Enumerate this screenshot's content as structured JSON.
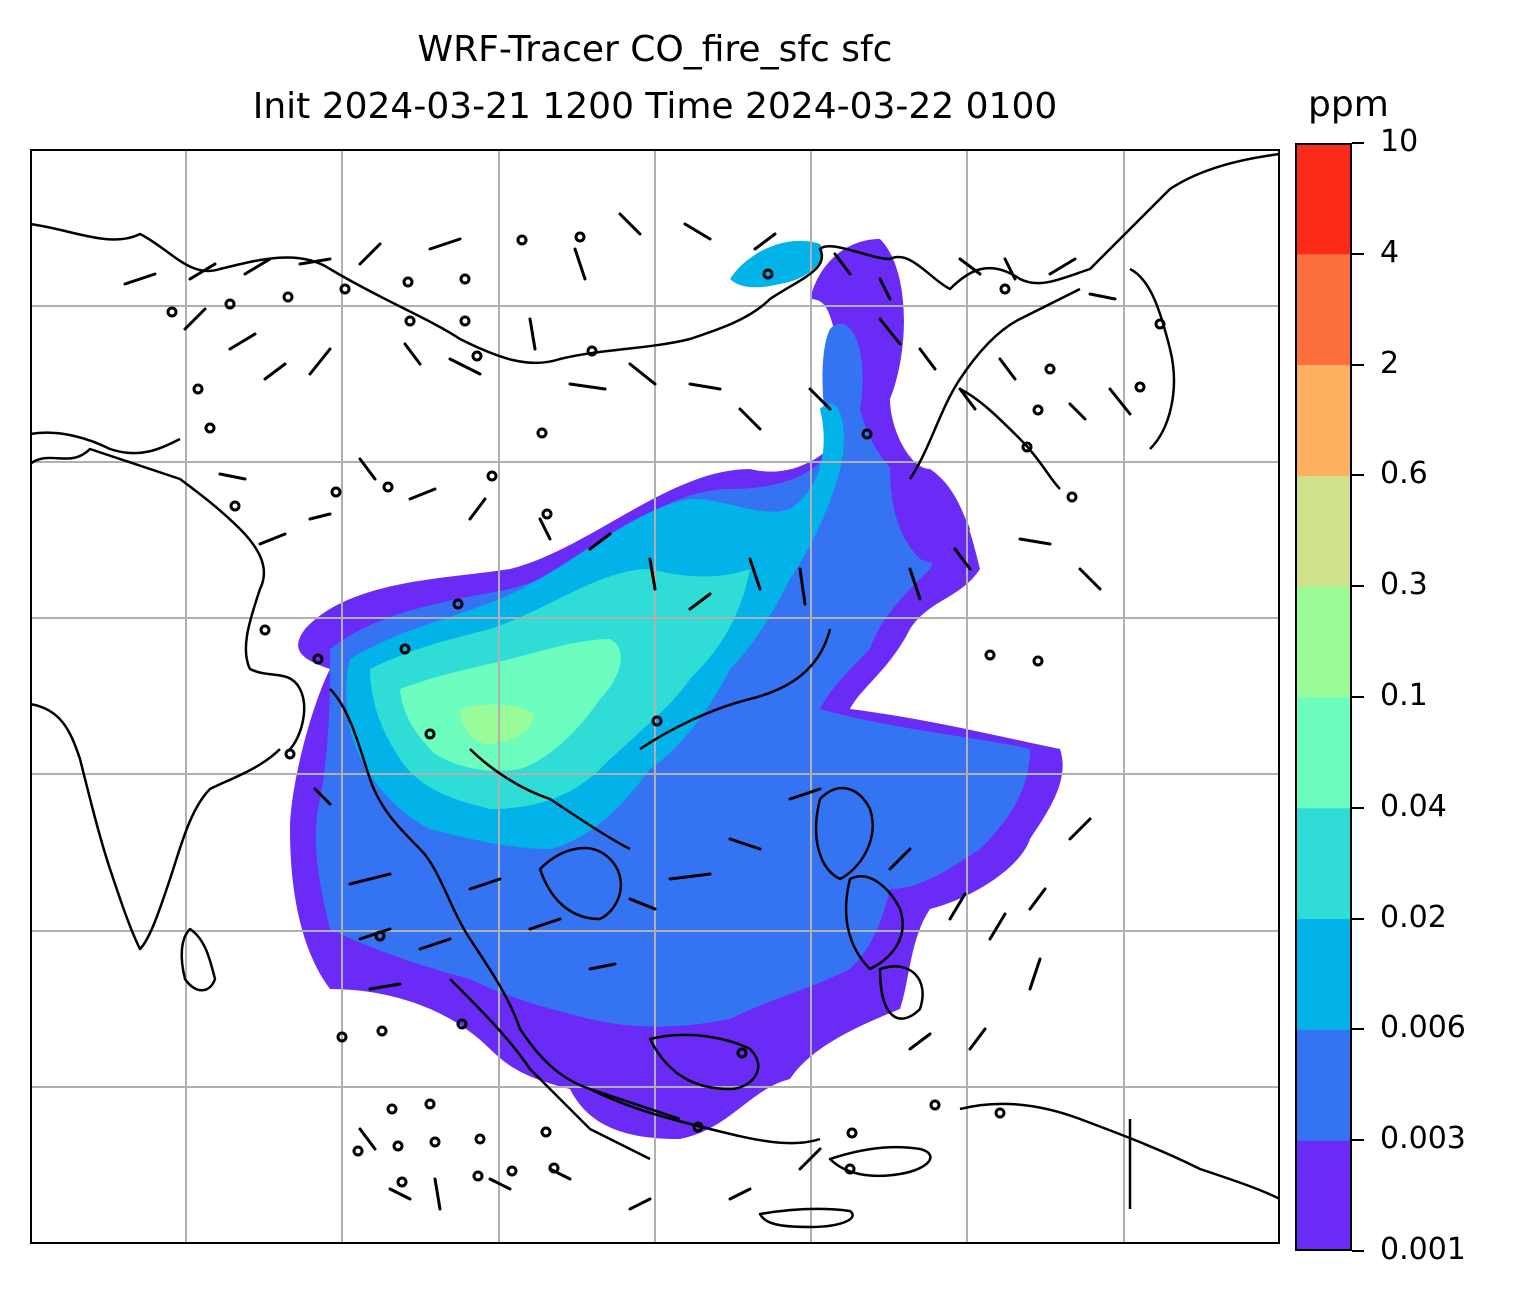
{
  "title": {
    "line1": "WRF-Tracer CO_fire_sfc sfc",
    "line2": "Init 2024-03-21 1200 Time 2024-03-22 0100"
  },
  "colorbar": {
    "unit": "ppm",
    "levels": [
      "0.001",
      "0.003",
      "0.006",
      "0.02",
      "0.04",
      "0.1",
      "0.3",
      "0.6",
      "2",
      "4",
      "10"
    ],
    "colors": [
      "#6a2bf7",
      "#3474f3",
      "#02b3e9",
      "#2fdcd6",
      "#6cfdbf",
      "#9afb99",
      "#cfe28a",
      "#fdb05f",
      "#fd6f3c",
      "#fc2a18"
    ]
  },
  "map": {
    "gridlines": true,
    "grid_color": "#b0b0b0",
    "coastline_color": "#000000",
    "barb_color": "#000000"
  }
}
